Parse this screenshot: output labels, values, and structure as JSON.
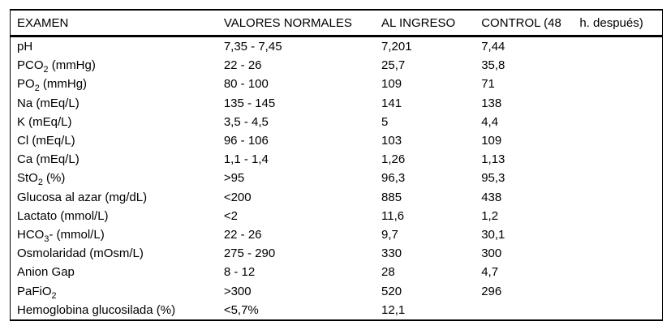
{
  "table": {
    "headers": [
      "EXAMEN",
      "VALORES NORMALES",
      "AL INGRESO",
      "CONTROL (48",
      "h. después)"
    ],
    "rows": [
      {
        "exam": "pH",
        "normal": "7,35 - 7,45",
        "ingreso": "7,201",
        "control": "7,44"
      },
      {
        "exam": "PCO₂ (mmHg)",
        "normal": "22 - 26",
        "ingreso": "25,7",
        "control": "35,8"
      },
      {
        "exam": "PO₂ (mmHg)",
        "normal": "80 - 100",
        "ingreso": "109",
        "control": "71"
      },
      {
        "exam": "Na (mEq/L)",
        "normal": "135 - 145",
        "ingreso": "141",
        "control": "138"
      },
      {
        "exam": "K (mEq/L)",
        "normal": "3,5 - 4,5",
        "ingreso": "5",
        "control": "4,4"
      },
      {
        "exam": "Cl (mEq/L)",
        "normal": "96 - 106",
        "ingreso": "103",
        "control": "109"
      },
      {
        "exam": "Ca (mEq/L)",
        "normal": "1,1 - 1,4",
        "ingreso": "1,26",
        "control": "1,13"
      },
      {
        "exam": "StO₂ (%)",
        "normal": ">95",
        "ingreso": "96,3",
        "control": "95,3"
      },
      {
        "exam": "Glucosa al azar (mg/dL)",
        "normal": "<200",
        "ingreso": "885",
        "control": "438"
      },
      {
        "exam": "Lactato (mmol/L)",
        "normal": "<2",
        "ingreso": "11,6",
        "control": "1,2"
      },
      {
        "exam": "HCO₃- (mmol/L)",
        "normal": "22 - 26",
        "ingreso": "9,7",
        "control": "30,1"
      },
      {
        "exam": "Osmolaridad (mOsm/L)",
        "normal": "275 - 290",
        "ingreso": "330",
        "control": "300"
      },
      {
        "exam": "Anion Gap",
        "normal": "8 - 12",
        "ingreso": "28",
        "control": "4,7"
      },
      {
        "exam": "PaFiO₂",
        "normal": ">300",
        "ingreso": "520",
        "control": "296"
      },
      {
        "exam": "Hemoglobina glucosilada (%)",
        "normal": "<5,7%",
        "ingreso": "12,1",
        "control": ""
      }
    ]
  },
  "colors": {
    "text": "#000000",
    "border": "#000000",
    "background": "#ffffff"
  }
}
